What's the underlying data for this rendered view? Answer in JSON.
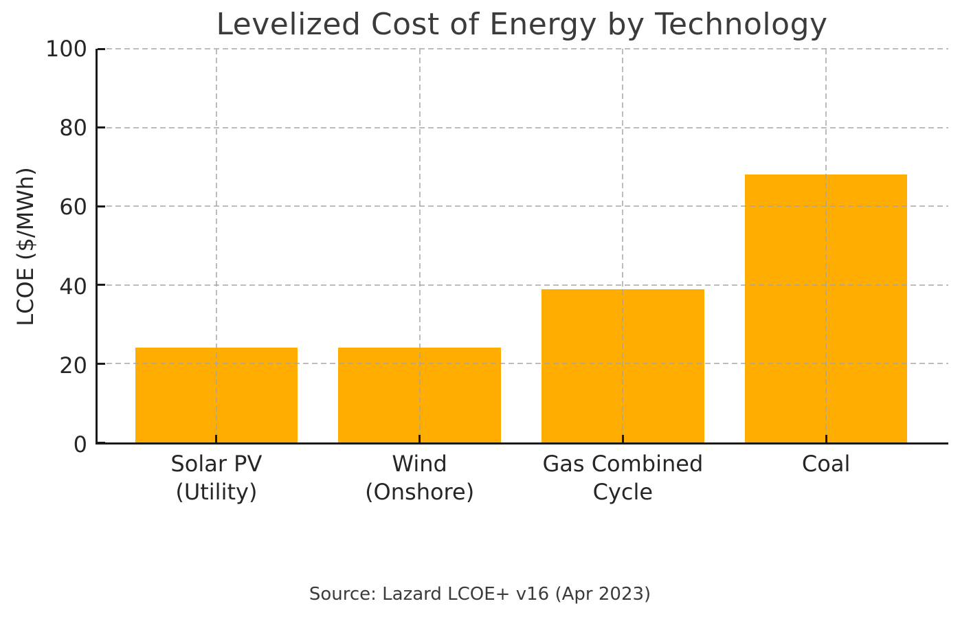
{
  "figure": {
    "background": "#ffffff",
    "title": "Levelized Cost of Energy by Technology",
    "source_note": "Source: Lazard LCOE+ v16 (Apr 2023)"
  },
  "colors": {
    "bar": "#FFAD00",
    "grid": "#c9c9c9",
    "axis": "#1a1a1a",
    "title_text": "#3b3b3b",
    "tick_text": "#262626"
  },
  "chart_data": {
    "type": "bar",
    "title": "Levelized Cost of Energy by Technology",
    "categories": [
      "Solar PV\n(Utility)",
      "Wind\n(Onshore)",
      "Gas Combined\nCycle",
      "Coal"
    ],
    "values": [
      24,
      24,
      39,
      68
    ],
    "xlabel": "",
    "ylabel": "LCOE ($/MWh)",
    "ylim": [
      0,
      100
    ],
    "yticks": [
      0,
      20,
      40,
      60,
      80,
      100
    ],
    "grid": true,
    "grid_style": "dashed",
    "grid_on_top_of_bars": true,
    "legend": "none",
    "annotations": [
      "Source: Lazard LCOE+ v16 (Apr 2023)"
    ]
  }
}
